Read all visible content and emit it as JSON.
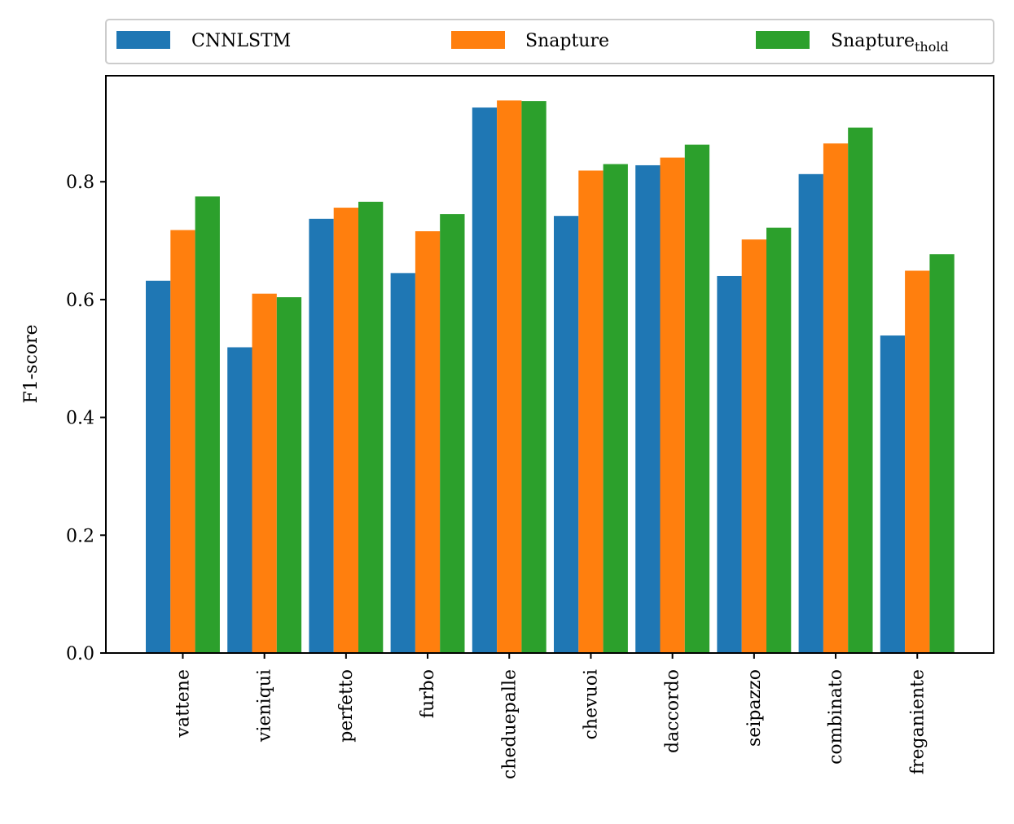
{
  "chart_data": {
    "type": "bar",
    "title": "",
    "xlabel": "",
    "ylabel": "F1-score",
    "ylim": [
      0,
      0.98
    ],
    "yticks": [
      "0.0",
      "0.2",
      "0.4",
      "0.6",
      "0.8"
    ],
    "grid": false,
    "legend_position": "top",
    "categories": [
      "vattene",
      "vieniqui",
      "perfetto",
      "furbo",
      "cheduepalle",
      "chevuoi",
      "daccordo",
      "seipazzo",
      "combinato",
      "freganiente"
    ],
    "series": [
      {
        "name": "CNNLSTM",
        "color": "#1f77b4",
        "values": [
          0.632,
          0.519,
          0.737,
          0.645,
          0.926,
          0.742,
          0.828,
          0.64,
          0.813,
          0.539
        ]
      },
      {
        "name": "Snapture",
        "color": "#ff7f0e",
        "values": [
          0.718,
          0.61,
          0.756,
          0.716,
          0.938,
          0.819,
          0.841,
          0.702,
          0.865,
          0.649
        ]
      },
      {
        "name": "Snapture",
        "subscript": "thold",
        "color": "#2ca02c",
        "values": [
          0.775,
          0.604,
          0.766,
          0.745,
          0.937,
          0.83,
          0.863,
          0.722,
          0.892,
          0.677
        ]
      }
    ]
  }
}
